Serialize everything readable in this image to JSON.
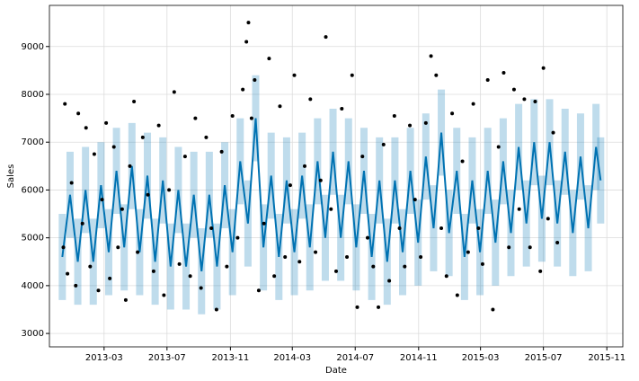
{
  "chart_data": {
    "type": "line",
    "xlabel": "Date",
    "ylabel": "Sales",
    "grid": true,
    "xlim": [
      "2012-11-15",
      "2015-12-02"
    ],
    "ylim": [
      2720,
      9860
    ],
    "xticks": [
      {
        "value": "2013-03-01",
        "label": "2013-03"
      },
      {
        "value": "2013-07-01",
        "label": "2013-07"
      },
      {
        "value": "2013-11-01",
        "label": "2013-11"
      },
      {
        "value": "2014-03-01",
        "label": "2014-03"
      },
      {
        "value": "2014-07-01",
        "label": "2014-07"
      },
      {
        "value": "2014-11-01",
        "label": "2014-11"
      },
      {
        "value": "2015-03-01",
        "label": "2015-03"
      },
      {
        "value": "2015-07-01",
        "label": "2015-07"
      },
      {
        "value": "2015-11-01",
        "label": "2015-11"
      }
    ],
    "yticks": [
      3000,
      4000,
      5000,
      6000,
      7000,
      8000,
      9000
    ],
    "forecast": {
      "color": "#0072B2",
      "x": [
        "2012-12-10",
        "2012-12-25",
        "2013-01-09",
        "2013-01-24",
        "2013-02-08",
        "2013-02-23",
        "2013-03-10",
        "2013-03-25",
        "2013-04-09",
        "2013-04-24",
        "2013-05-09",
        "2013-05-24",
        "2013-06-08",
        "2013-06-23",
        "2013-07-08",
        "2013-07-23",
        "2013-08-07",
        "2013-08-22",
        "2013-09-06",
        "2013-09-21",
        "2013-10-06",
        "2013-10-21",
        "2013-11-05",
        "2013-11-20",
        "2013-12-05",
        "2013-12-20",
        "2014-01-04",
        "2014-01-19",
        "2014-02-03",
        "2014-02-18",
        "2014-03-05",
        "2014-03-20",
        "2014-04-04",
        "2014-04-19",
        "2014-05-04",
        "2014-05-19",
        "2014-06-03",
        "2014-06-18",
        "2014-07-03",
        "2014-07-18",
        "2014-08-02",
        "2014-08-17",
        "2014-09-01",
        "2014-09-16",
        "2014-10-01",
        "2014-10-16",
        "2014-10-31",
        "2014-11-15",
        "2014-11-30",
        "2014-12-15",
        "2014-12-30",
        "2015-01-14",
        "2015-01-29",
        "2015-02-13",
        "2015-02-28",
        "2015-03-15",
        "2015-03-30",
        "2015-04-14",
        "2015-04-29",
        "2015-05-14",
        "2015-05-29",
        "2015-06-13",
        "2015-06-28",
        "2015-07-13",
        "2015-07-28",
        "2015-08-12",
        "2015-08-27",
        "2015-09-11",
        "2015-09-26",
        "2015-10-11",
        "2015-10-20"
      ],
      "yhat": [
        4600,
        5900,
        4500,
        6000,
        4500,
        6100,
        4700,
        6400,
        4800,
        6500,
        4700,
        6300,
        4500,
        6200,
        4400,
        6000,
        4400,
        5900,
        4300,
        5900,
        4400,
        6100,
        4700,
        6600,
        5300,
        7500,
        4800,
        6300,
        4600,
        6200,
        4700,
        6300,
        4800,
        6600,
        5000,
        6800,
        5000,
        6600,
        4800,
        6400,
        4600,
        6200,
        4500,
        6200,
        4700,
        6400,
        4900,
        6700,
        5200,
        7200,
        5100,
        6400,
        4600,
        6200,
        4700,
        6400,
        4900,
        6600,
        5100,
        6900,
        5300,
        7000,
        5400,
        7000,
        5300,
        6800,
        5100,
        6700,
        5200,
        6900,
        6200
      ],
      "yhat_lower": [
        3700,
        5000,
        3600,
        5100,
        3600,
        5200,
        3800,
        5500,
        3900,
        5600,
        3800,
        5400,
        3600,
        5300,
        3500,
        5100,
        3500,
        5000,
        3400,
        5000,
        3500,
        5200,
        3800,
        5700,
        4400,
        6600,
        3900,
        5400,
        3700,
        5300,
        3800,
        5400,
        3900,
        5700,
        4100,
        5900,
        4100,
        5700,
        3900,
        5500,
        3700,
        5300,
        3600,
        5300,
        3800,
        5500,
        4000,
        5800,
        4300,
        6300,
        4200,
        5500,
        3700,
        5300,
        3800,
        5500,
        4000,
        5700,
        4200,
        6000,
        4400,
        6100,
        4500,
        6100,
        4400,
        5900,
        4200,
        5800,
        4300,
        6000,
        5300
      ],
      "yhat_upper": [
        5500,
        6800,
        5400,
        6900,
        5400,
        7000,
        5600,
        7300,
        5700,
        7400,
        5600,
        7200,
        5400,
        7100,
        5300,
        6900,
        5300,
        6800,
        5200,
        6800,
        5300,
        7000,
        5600,
        7500,
        6200,
        8400,
        5700,
        7200,
        5500,
        7100,
        5600,
        7200,
        5700,
        7500,
        5900,
        7700,
        5900,
        7500,
        5700,
        7300,
        5500,
        7100,
        5400,
        7100,
        5600,
        7300,
        5800,
        7600,
        6100,
        8100,
        6000,
        7300,
        5500,
        7100,
        5600,
        7300,
        5800,
        7500,
        6000,
        7800,
        6200,
        7900,
        6300,
        7900,
        6200,
        7700,
        6000,
        7600,
        6100,
        7800,
        7100
      ]
    },
    "observed": {
      "color": "#000000",
      "x": [
        "2012-12-12",
        "2012-12-15",
        "2012-12-20",
        "2012-12-28",
        "2013-01-05",
        "2013-01-10",
        "2013-01-18",
        "2013-01-25",
        "2013-02-02",
        "2013-02-10",
        "2013-02-18",
        "2013-02-25",
        "2013-03-05",
        "2013-03-12",
        "2013-03-20",
        "2013-03-28",
        "2013-04-05",
        "2013-04-12",
        "2013-04-20",
        "2013-04-28",
        "2013-05-05",
        "2013-05-15",
        "2013-05-25",
        "2013-06-05",
        "2013-06-15",
        "2013-06-25",
        "2013-07-05",
        "2013-07-15",
        "2013-07-25",
        "2013-08-05",
        "2013-08-15",
        "2013-08-25",
        "2013-09-05",
        "2013-09-15",
        "2013-09-25",
        "2013-10-05",
        "2013-10-15",
        "2013-10-25",
        "2013-11-05",
        "2013-11-15",
        "2013-11-25",
        "2013-12-02",
        "2013-12-06",
        "2013-12-12",
        "2013-12-18",
        "2013-12-26",
        "2014-01-05",
        "2014-01-15",
        "2014-01-25",
        "2014-02-05",
        "2014-02-15",
        "2014-02-25",
        "2014-03-05",
        "2014-03-15",
        "2014-03-25",
        "2014-04-05",
        "2014-04-15",
        "2014-04-25",
        "2014-05-05",
        "2014-05-15",
        "2014-05-25",
        "2014-06-05",
        "2014-06-15",
        "2014-06-25",
        "2014-07-05",
        "2014-07-15",
        "2014-07-25",
        "2014-08-05",
        "2014-08-15",
        "2014-08-25",
        "2014-09-05",
        "2014-09-15",
        "2014-09-25",
        "2014-10-05",
        "2014-10-15",
        "2014-10-25",
        "2014-11-05",
        "2014-11-15",
        "2014-11-25",
        "2014-12-05",
        "2014-12-15",
        "2014-12-25",
        "2015-01-05",
        "2015-01-15",
        "2015-01-25",
        "2015-02-05",
        "2015-02-15",
        "2015-02-25",
        "2015-03-05",
        "2015-03-15",
        "2015-03-25",
        "2015-04-05",
        "2015-04-15",
        "2015-04-25",
        "2015-05-05",
        "2015-05-15",
        "2015-05-25",
        "2015-06-05",
        "2015-06-15",
        "2015-06-25",
        "2015-07-01",
        "2015-07-10",
        "2015-07-20",
        "2015-07-28"
      ],
      "values": [
        4800,
        7800,
        4250,
        6150,
        4000,
        7600,
        5300,
        7300,
        4400,
        6750,
        3900,
        5800,
        7400,
        4150,
        6900,
        4800,
        5600,
        3700,
        6500,
        7850,
        4700,
        7100,
        5900,
        4300,
        7350,
        3800,
        6000,
        8050,
        4450,
        6700,
        4200,
        7500,
        3950,
        7100,
        5200,
        3500,
        6800,
        4400,
        7550,
        5000,
        8100,
        9100,
        9500,
        7500,
        8300,
        3900,
        5300,
        8750,
        4200,
        7750,
        4600,
        6100,
        8400,
        4500,
        6500,
        7900,
        4700,
        6200,
        9200,
        5600,
        4300,
        7700,
        4600,
        8400,
        3550,
        6700,
        5000,
        4400,
        3550,
        6950,
        4100,
        7550,
        5200,
        4400,
        7350,
        5800,
        4600,
        7400,
        8800,
        8400,
        5200,
        4200,
        7600,
        3800,
        6600,
        4700,
        7800,
        5200,
        4450,
        8300,
        3500,
        6900,
        8450,
        4800,
        8100,
        5600,
        7900,
        4800,
        7850,
        4300,
        8550,
        5400,
        7200,
        4900
      ]
    }
  }
}
